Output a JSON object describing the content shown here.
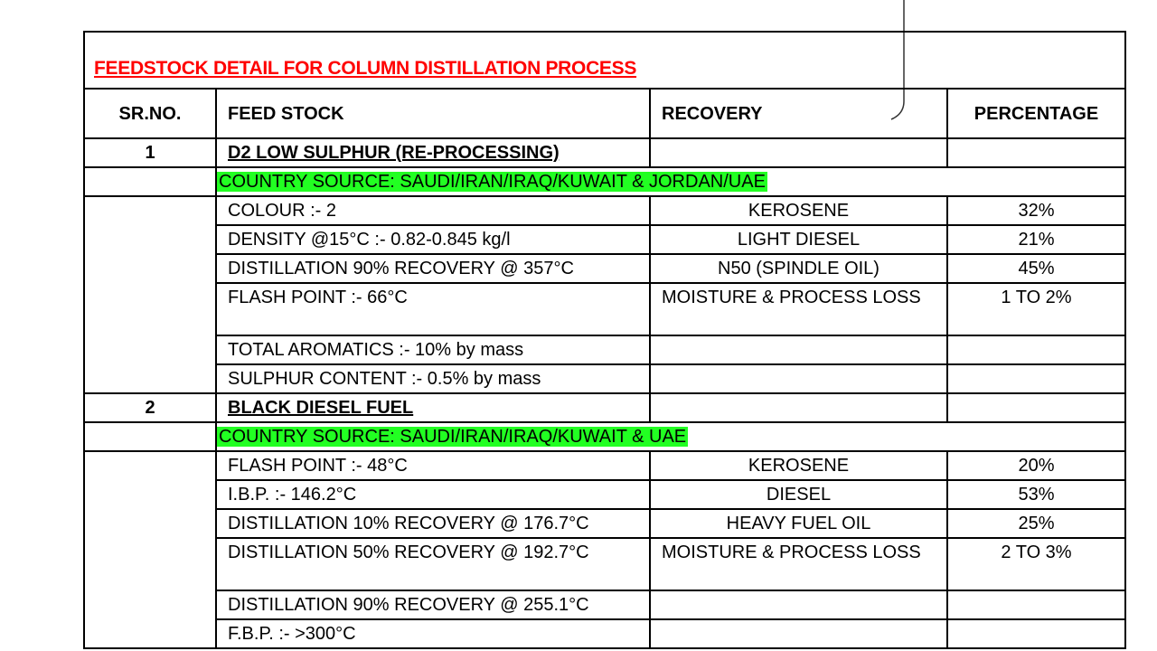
{
  "title": "FEEDSTOCK DETAIL FOR COLUMN DISTILLATION PROCESS",
  "headers": [
    "SR.NO.",
    "FEED STOCK",
    "RECOVERY",
    "PERCENTAGE"
  ],
  "groups": [
    {
      "sr": "1",
      "name": "D2 LOW SULPHUR (RE-PROCESSING)",
      "country": "COUNTRY SOURCE: SAUDI/IRAN/IRAQ/KUWAIT & JORDAN/UAE",
      "rows": [
        {
          "spec": "COLOUR :- 2",
          "recovery": "KEROSENE",
          "percentage": "32%"
        },
        {
          "spec": "DENSITY @15°C :- 0.82-0.845 kg/l",
          "recovery": "LIGHT DIESEL",
          "percentage": "21%"
        },
        {
          "spec": "DISTILLATION 90% RECOVERY @ 357°C",
          "recovery": "N50 (SPINDLE OIL)",
          "percentage": "45%"
        },
        {
          "spec": "FLASH POINT :- 66°C",
          "recovery": "MOISTURE & PROCESS LOSS",
          "percentage": "1 TO 2%"
        },
        {
          "spec": "TOTAL AROMATICS :- 10% by mass",
          "recovery": "",
          "percentage": ""
        },
        {
          "spec": "SULPHUR CONTENT :- 0.5% by mass",
          "recovery": "",
          "percentage": ""
        }
      ]
    },
    {
      "sr": "2",
      "name": "BLACK DIESEL FUEL",
      "country": "COUNTRY SOURCE: SAUDI/IRAN/IRAQ/KUWAIT & UAE",
      "rows": [
        {
          "spec": "FLASH POINT :- 48°C",
          "recovery": "KEROSENE",
          "percentage": "20%"
        },
        {
          "spec": "I.B.P. :- 146.2°C",
          "recovery": "DIESEL",
          "percentage": "53%"
        },
        {
          "spec": "DISTILLATION 10% RECOVERY @ 176.7°C",
          "recovery": "HEAVY FUEL OIL",
          "percentage": "25%"
        },
        {
          "spec": "DISTILLATION 50% RECOVERY @ 192.7°C",
          "recovery": "MOISTURE & PROCESS LOSS",
          "percentage": "2 TO 3%"
        },
        {
          "spec": "DISTILLATION 90% RECOVERY @ 255.1°C",
          "recovery": "",
          "percentage": ""
        },
        {
          "spec": "F.B.P. :- >300°C",
          "recovery": "",
          "percentage": ""
        }
      ]
    }
  ],
  "colors": {
    "title": "#ff0000",
    "highlight": "#22ff22"
  }
}
